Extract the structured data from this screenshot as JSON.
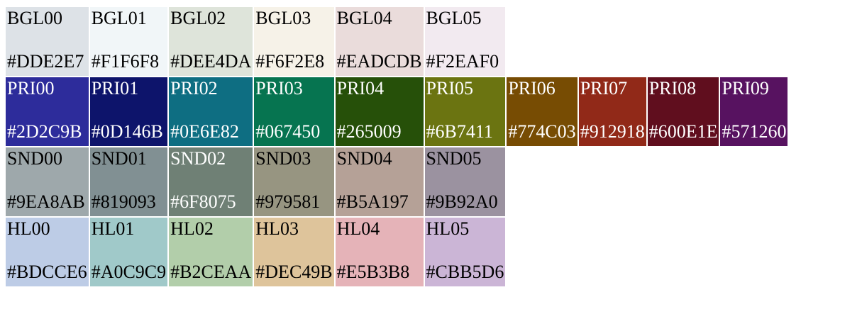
{
  "rows": [
    {
      "group": "BGL",
      "swatches": [
        {
          "name": "BGL00",
          "hex": "#DDE2E7",
          "text_color": "#000000"
        },
        {
          "name": "BGL01",
          "hex": "#F1F6F8",
          "text_color": "#000000"
        },
        {
          "name": "BGL02",
          "hex": "#DEE4DA",
          "text_color": "#000000"
        },
        {
          "name": "BGL03",
          "hex": "#F6F2E8",
          "text_color": "#000000"
        },
        {
          "name": "BGL04",
          "hex": "#EADCDB",
          "text_color": "#000000"
        },
        {
          "name": "BGL05",
          "hex": "#F2EAF0",
          "text_color": "#000000"
        }
      ]
    },
    {
      "group": "PRI",
      "swatches": [
        {
          "name": "PRI00",
          "hex": "#2D2C9B",
          "text_color": "#FFFFFF"
        },
        {
          "name": "PRI01",
          "hex": "#0D146B",
          "text_color": "#FFFFFF"
        },
        {
          "name": "PRI02",
          "hex": "#0E6E82",
          "text_color": "#FFFFFF"
        },
        {
          "name": "PRI03",
          "hex": "#067450",
          "text_color": "#FFFFFF"
        },
        {
          "name": "PRI04",
          "hex": "#265009",
          "text_color": "#FFFFFF"
        },
        {
          "name": "PRI05",
          "hex": "#6B7411",
          "text_color": "#FFFFFF"
        },
        {
          "name": "PRI06",
          "hex": "#774C03",
          "text_color": "#FFFFFF"
        },
        {
          "name": "PRI07",
          "hex": "#912918",
          "text_color": "#FFFFFF"
        },
        {
          "name": "PRI08",
          "hex": "#600E1E",
          "text_color": "#FFFFFF"
        },
        {
          "name": "PRI09",
          "hex": "#571260",
          "text_color": "#FFFFFF"
        }
      ]
    },
    {
      "group": "SND",
      "swatches": [
        {
          "name": "SND00",
          "hex": "#9EA8AB",
          "text_color": "#000000"
        },
        {
          "name": "SND01",
          "hex": "#819093",
          "text_color": "#000000"
        },
        {
          "name": "SND02",
          "hex": "#6F8075",
          "text_color": "#FFFFFF"
        },
        {
          "name": "SND03",
          "hex": "#979581",
          "text_color": "#000000"
        },
        {
          "name": "SND04",
          "hex": "#B5A197",
          "text_color": "#000000"
        },
        {
          "name": "SND05",
          "hex": "#9B92A0",
          "text_color": "#000000"
        }
      ]
    },
    {
      "group": "HL",
      "swatches": [
        {
          "name": "HL00",
          "hex": "#BDCCE6",
          "text_color": "#000000"
        },
        {
          "name": "HL01",
          "hex": "#A0C9C9",
          "text_color": "#000000"
        },
        {
          "name": "HL02",
          "hex": "#B2CEAA",
          "text_color": "#000000"
        },
        {
          "name": "HL03",
          "hex": "#DEC49B",
          "text_color": "#000000"
        },
        {
          "name": "HL04",
          "hex": "#E5B3B8",
          "text_color": "#000000"
        },
        {
          "name": "HL05",
          "hex": "#CBB5D6",
          "text_color": "#000000"
        }
      ]
    }
  ]
}
